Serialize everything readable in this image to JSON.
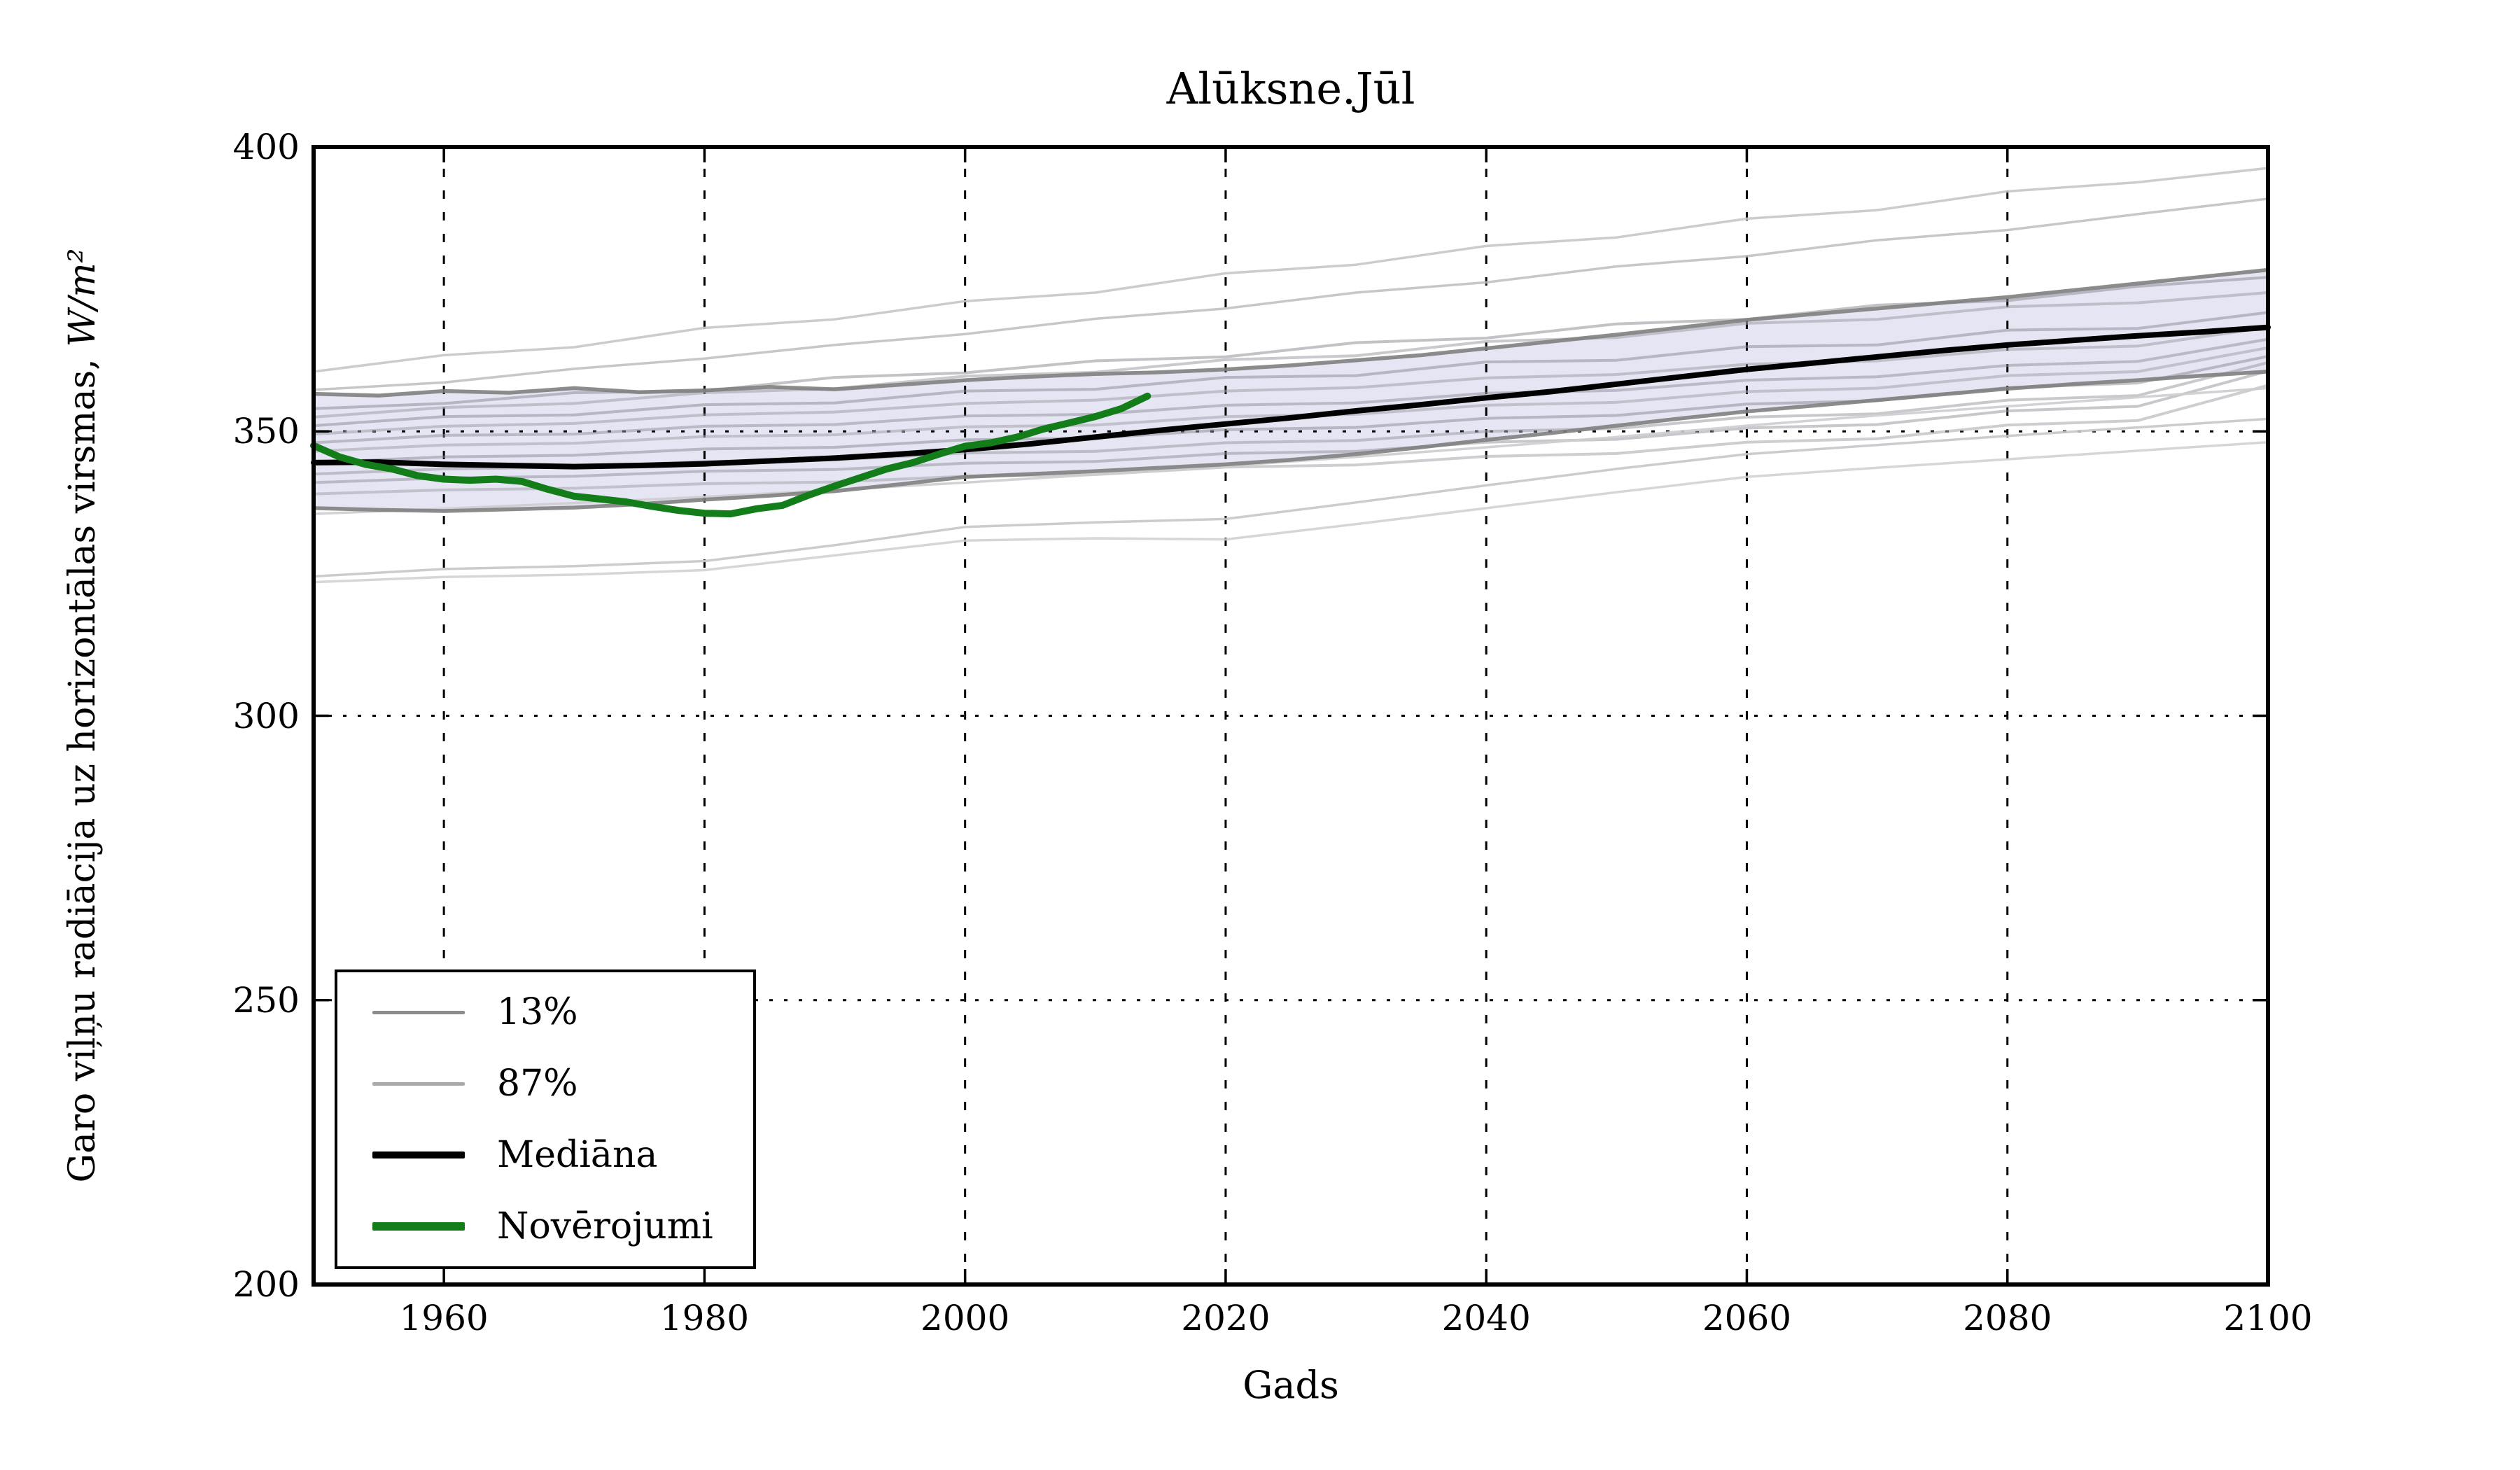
{
  "chart": {
    "title": "Alūksne.Jūl",
    "xlabel": "Gads",
    "ylabel_text": "Garo viļņu radiācija uz horizontālas virsmas, ",
    "ylabel_math": "W/m²"
  },
  "legend": {
    "items": [
      {
        "label": "13%",
        "color": "#8c8c8c",
        "thickness": 5
      },
      {
        "label": "87%",
        "color": "#a9a9a9",
        "thickness": 5
      },
      {
        "label": "Mediāna",
        "color": "#000000",
        "thickness": 10
      },
      {
        "label": "Novērojumi",
        "color": "#127d19",
        "thickness": 12
      }
    ]
  },
  "chart_data": {
    "type": "line",
    "title": "Alūksne.Jūl",
    "xlabel": "Gads",
    "ylabel": "Garo viļņu radiācija uz horizontālas virsmas, W/m²",
    "xlim": [
      1950,
      2100
    ],
    "ylim": [
      200,
      400
    ],
    "xticks": {
      "years": [
        1960,
        1980,
        2000,
        2020,
        2040,
        2060,
        2080,
        2100
      ],
      "labels": [
        "1960",
        "1980",
        "2000",
        "2020",
        "2040",
        "2060",
        "2080",
        "2100"
      ]
    },
    "yticks": {
      "values": [
        400,
        350,
        300,
        250,
        200
      ],
      "labels": [
        "400",
        "350",
        "300",
        "250",
        "200"
      ]
    },
    "grid_x_years": [
      1960,
      1980,
      2000,
      2020,
      2040,
      2060,
      2080,
      2100
    ],
    "grid_y_values": [
      350,
      300,
      250
    ],
    "grid_on": true,
    "legend_position": "lower-left",
    "band_fill": "#e5e5f3",
    "years5": [
      1950,
      1955,
      1960,
      1965,
      1970,
      1975,
      1980,
      1985,
      1990,
      1995,
      2000,
      2005,
      2010,
      2015,
      2020,
      2025,
      2030,
      2035,
      2040,
      2045,
      2050,
      2055,
      2060,
      2065,
      2070,
      2075,
      2080,
      2085,
      2090,
      2095,
      2100
    ],
    "years10": [
      1950,
      1960,
      1970,
      1980,
      1990,
      2000,
      2010,
      2020,
      2030,
      2040,
      2050,
      2060,
      2070,
      2080,
      2090,
      2100
    ],
    "obs_years": [
      1950,
      1952,
      1954,
      1956,
      1958,
      1960,
      1962,
      1964,
      1966,
      1968,
      1970,
      1972,
      1974,
      1976,
      1978,
      1980,
      1982,
      1984,
      1986,
      1988,
      1990,
      1992,
      1994,
      1996,
      1998,
      2000,
      2002,
      2004,
      2006,
      2008,
      2010,
      2012,
      2014
    ],
    "series": [
      {
        "name": "ensemble-member-high-1",
        "role": "member",
        "years_key": "years10",
        "color": "#c6c6c9",
        "width": 3.5,
        "opacity": 0.9,
        "values": [
          360.5,
          363.4,
          364.8,
          368.2,
          369.7,
          372.9,
          374.4,
          377.8,
          379.3,
          382.6,
          384.1,
          387.4,
          388.9,
          392.2,
          393.8,
          396.3
        ]
      },
      {
        "name": "ensemble-member-high-2",
        "role": "member",
        "years_key": "years10",
        "color": "#bdbdc2",
        "width": 3.5,
        "opacity": 0.85,
        "values": [
          357.3,
          358.6,
          361.0,
          362.8,
          365.2,
          367.1,
          369.8,
          371.6,
          374.4,
          376.2,
          379.0,
          380.8,
          383.6,
          385.4,
          388.2,
          390.9
        ]
      },
      {
        "name": "ensemble-member-1",
        "role": "member",
        "years_key": "years10",
        "color": "#8f8f99",
        "width": 4,
        "opacity": 0.55,
        "values": [
          354.0,
          354.9,
          356.8,
          357.1,
          359.5,
          360.3,
          362.4,
          363.1,
          365.6,
          366.4,
          368.9,
          369.7,
          372.2,
          373.0,
          375.5,
          377.1
        ]
      },
      {
        "name": "ensemble-member-2",
        "role": "member",
        "years_key": "years10",
        "color": "#a5a5ad",
        "width": 4,
        "opacity": 0.6,
        "values": [
          352.5,
          354.2,
          354.9,
          356.8,
          357.5,
          359.7,
          360.4,
          362.6,
          363.3,
          365.8,
          366.5,
          369.0,
          369.7,
          371.9,
          372.6,
          374.4
        ]
      },
      {
        "name": "ensemble-member-3",
        "role": "member",
        "years_key": "years10",
        "color": "#8a8a94",
        "width": 4,
        "opacity": 0.5,
        "values": [
          351.0,
          352.6,
          352.9,
          354.7,
          355.0,
          357.1,
          357.4,
          359.5,
          359.8,
          362.2,
          362.5,
          364.9,
          365.2,
          367.8,
          368.1,
          370.9
        ]
      },
      {
        "name": "ensemble-member-4",
        "role": "member",
        "years_key": "years10",
        "color": "#a0a0a8",
        "width": 4,
        "opacity": 0.55,
        "values": [
          349.5,
          350.9,
          351.4,
          352.9,
          353.4,
          354.9,
          355.5,
          357.1,
          357.7,
          359.4,
          360.0,
          361.8,
          362.4,
          364.4,
          365.0,
          368.3
        ]
      },
      {
        "name": "ensemble-member-5",
        "role": "member",
        "years_key": "years10",
        "color": "#8f8f99",
        "width": 4,
        "opacity": 0.5,
        "values": [
          348.0,
          349.3,
          349.5,
          350.9,
          351.2,
          352.7,
          353.0,
          354.6,
          355.0,
          356.7,
          357.2,
          359.0,
          359.6,
          361.6,
          362.3,
          366.2
        ]
      },
      {
        "name": "ensemble-member-6",
        "role": "member",
        "years_key": "years10",
        "color": "#a8a8b0",
        "width": 4,
        "opacity": 0.6,
        "values": [
          346.5,
          347.6,
          347.9,
          349.1,
          349.4,
          350.8,
          351.1,
          352.6,
          353.0,
          354.6,
          355.1,
          357.0,
          357.6,
          359.8,
          360.5,
          364.7
        ]
      },
      {
        "name": "ensemble-member-7",
        "role": "member",
        "years_key": "years10",
        "color": "#8a8a94",
        "width": 4,
        "opacity": 0.5,
        "values": [
          344.5,
          345.5,
          345.8,
          346.9,
          347.2,
          348.5,
          348.8,
          350.3,
          350.7,
          352.3,
          352.8,
          354.8,
          355.4,
          357.7,
          358.5,
          363.2
        ]
      },
      {
        "name": "ensemble-member-8",
        "role": "member",
        "years_key": "years10",
        "color": "#9c9ca4",
        "width": 4,
        "opacity": 0.55,
        "values": [
          342.5,
          343.4,
          343.7,
          344.7,
          345.0,
          346.2,
          346.5,
          348.0,
          348.4,
          350.0,
          350.5,
          352.5,
          353.1,
          355.5,
          356.3,
          362.1
        ]
      },
      {
        "name": "ensemble-member-9",
        "role": "member",
        "years_key": "years10",
        "color": "#8f8f99",
        "width": 4,
        "opacity": 0.5,
        "values": [
          341.0,
          341.8,
          342.1,
          343.0,
          343.3,
          344.4,
          344.7,
          346.1,
          346.5,
          348.1,
          348.6,
          350.6,
          351.2,
          353.6,
          354.4,
          360.6
        ]
      },
      {
        "name": "ensemble-member-10",
        "role": "member",
        "years_key": "years10",
        "color": "#a5a5ad",
        "width": 4,
        "opacity": 0.55,
        "values": [
          339.0,
          339.7,
          340.0,
          340.8,
          341.1,
          342.1,
          342.4,
          343.7,
          344.1,
          345.6,
          346.1,
          348.1,
          348.7,
          351.1,
          351.9,
          358.1
        ]
      },
      {
        "name": "ensemble-member-low-1",
        "role": "member",
        "years_key": "years10",
        "color": "#cdcdd0",
        "width": 3.5,
        "opacity": 0.9,
        "values": [
          335.5,
          336.4,
          337.4,
          338.5,
          339.7,
          341.0,
          342.4,
          343.9,
          345.5,
          347.2,
          349.0,
          351.0,
          352.8,
          354.4,
          356.0,
          357.6
        ]
      },
      {
        "name": "ensemble-member-low-2",
        "role": "member",
        "years_key": "years10",
        "color": "#c6c6c9",
        "width": 3.5,
        "opacity": 0.9,
        "values": [
          324.5,
          325.8,
          326.3,
          327.2,
          330.0,
          333.2,
          334.0,
          334.6,
          337.5,
          340.5,
          343.4,
          346.0,
          347.6,
          349.2,
          350.7,
          352.2
        ]
      },
      {
        "name": "ensemble-member-low-3",
        "role": "member",
        "years_key": "years10",
        "color": "#cfcfd2",
        "width": 3.5,
        "opacity": 0.85,
        "values": [
          323.5,
          324.4,
          324.8,
          325.6,
          328.2,
          330.8,
          331.2,
          331.0,
          333.7,
          336.5,
          339.3,
          342.0,
          343.6,
          345.1,
          346.6,
          348.1
        ]
      },
      {
        "name": "percentile-87",
        "role": "p87",
        "years_key": "years5",
        "color": "#7f7f7f",
        "width": 5.5,
        "opacity": 0.9,
        "values": [
          356.6,
          356.3,
          357.1,
          356.8,
          357.6,
          356.9,
          357.2,
          357.8,
          357.4,
          358.2,
          359.0,
          359.6,
          360.1,
          360.4,
          360.9,
          361.6,
          362.5,
          363.4,
          364.6,
          365.8,
          367.0,
          368.3,
          369.6,
          370.6,
          371.6,
          372.6,
          373.6,
          374.8,
          376.0,
          377.2,
          378.4
        ]
      },
      {
        "name": "percentile-13",
        "role": "p13",
        "years_key": "years5",
        "color": "#7f7f7f",
        "width": 5.5,
        "opacity": 0.9,
        "values": [
          336.5,
          336.2,
          336.0,
          336.3,
          336.6,
          337.2,
          338.0,
          338.7,
          339.5,
          340.7,
          342.0,
          342.5,
          343.0,
          343.6,
          344.2,
          345.0,
          346.0,
          347.2,
          348.5,
          349.7,
          351.0,
          352.3,
          353.5,
          354.5,
          355.5,
          356.5,
          357.5,
          358.3,
          359.0,
          359.8,
          360.5
        ]
      },
      {
        "name": "median",
        "role": "median",
        "years_key": "years5",
        "color": "#000000",
        "width": 8,
        "opacity": 1,
        "values": [
          344.5,
          344.6,
          344.2,
          344.0,
          343.8,
          344.0,
          344.3,
          344.8,
          345.3,
          346.0,
          346.8,
          347.8,
          349.0,
          350.2,
          351.3,
          352.4,
          353.6,
          354.7,
          355.9,
          357.0,
          358.3,
          359.6,
          360.9,
          362.0,
          363.1,
          364.2,
          365.2,
          366.0,
          366.8,
          367.5,
          368.3
        ]
      },
      {
        "name": "observations",
        "role": "obs",
        "years_key": "obs_years",
        "color": "#127d19",
        "width": 10,
        "opacity": 1,
        "values": [
          347.5,
          345.5,
          344.2,
          343.4,
          342.2,
          341.6,
          341.4,
          341.6,
          341.2,
          339.8,
          338.6,
          338.1,
          337.6,
          336.8,
          336.1,
          335.6,
          335.5,
          336.4,
          337.0,
          338.8,
          340.4,
          341.9,
          343.4,
          344.5,
          346.0,
          347.4,
          348.0,
          349.0,
          350.4,
          351.5,
          352.6,
          354.0,
          356.2
        ]
      }
    ]
  }
}
